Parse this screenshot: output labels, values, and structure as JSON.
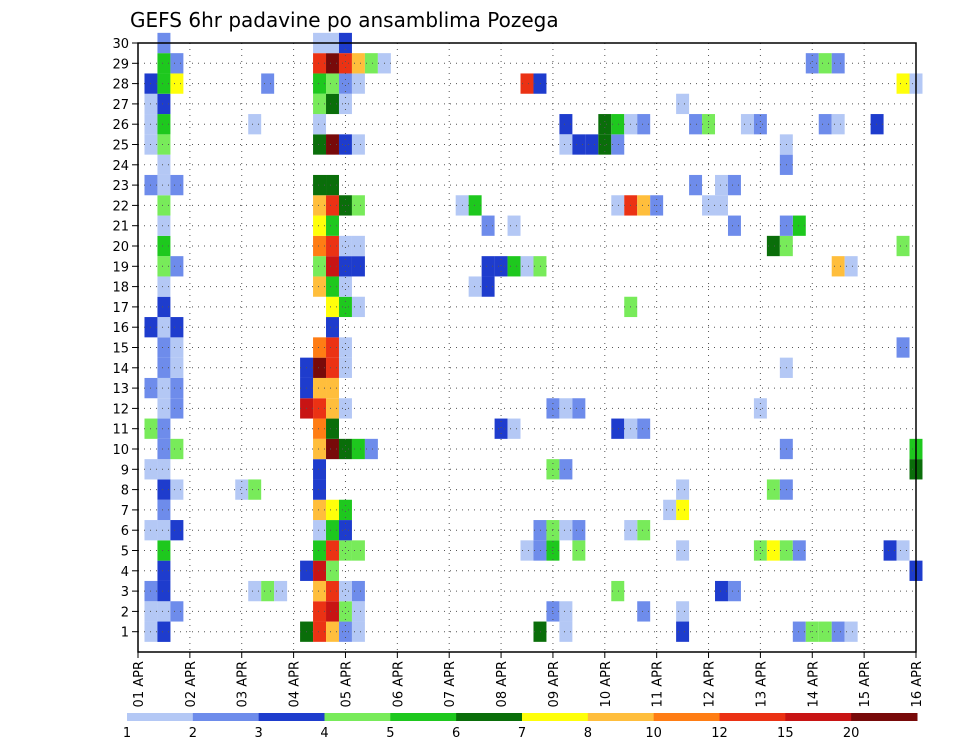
{
  "chart_data": {
    "type": "heatmap",
    "title": "GEFS 6hr padavine po ansamblima Pozega",
    "xlabel": "",
    "ylabel": "",
    "x_ticks": [
      "01 APR",
      "02 APR",
      "03 APR",
      "04 APR",
      "05 APR",
      "06 APR",
      "07 APR",
      "08 APR",
      "09 APR",
      "10 APR",
      "11 APR",
      "12 APR",
      "13 APR",
      "14 APR",
      "15 APR",
      "16 APR"
    ],
    "y_ticks": [
      "1",
      "2",
      "3",
      "4",
      "5",
      "6",
      "7",
      "8",
      "9",
      "10",
      "11",
      "12",
      "13",
      "14",
      "15",
      "16",
      "17",
      "18",
      "19",
      "20",
      "21",
      "22",
      "23",
      "24",
      "25",
      "26",
      "27",
      "28",
      "29",
      "30"
    ],
    "xlim": [
      0,
      15
    ],
    "ylim": [
      0,
      30
    ],
    "grid": true,
    "x_step": 0.25,
    "y_step": 1,
    "legend": {
      "placement": "bottom",
      "labels": [
        "1",
        "2",
        "3",
        "4",
        "5",
        "6",
        "7",
        "8",
        "10",
        "12",
        "15",
        "20"
      ],
      "colors": [
        "#b4c8f5",
        "#6e8ceb",
        "#1e3ccd",
        "#78eb5a",
        "#1ec81e",
        "#0a6e0a",
        "#ffff0a",
        "#ffbe3c",
        "#ff7d14",
        "#eb3214",
        "#c81414",
        "#780a0a"
      ]
    },
    "cells": [
      [
        0.25,
        1,
        1
      ],
      [
        0.5,
        1,
        2
      ],
      [
        0.5,
        1,
        3
      ],
      [
        0.25,
        2,
        1
      ],
      [
        0.5,
        2,
        1
      ],
      [
        0.75,
        2,
        2
      ],
      [
        0.25,
        3,
        2
      ],
      [
        0.5,
        3,
        3
      ],
      [
        0.5,
        4,
        3
      ],
      [
        0.5,
        5,
        5
      ],
      [
        0.25,
        6,
        1
      ],
      [
        0.5,
        6,
        1
      ],
      [
        0.75,
        6,
        3
      ],
      [
        0.5,
        7,
        2
      ],
      [
        0.5,
        8,
        3
      ],
      [
        0.75,
        8,
        1
      ],
      [
        0.25,
        9,
        1
      ],
      [
        0.5,
        9,
        1
      ],
      [
        0.5,
        10,
        2
      ],
      [
        0.75,
        10,
        4
      ],
      [
        0.25,
        11,
        4
      ],
      [
        0.5,
        11,
        2
      ],
      [
        0.5,
        12,
        1
      ],
      [
        0.75,
        12,
        2
      ],
      [
        0.25,
        13,
        2
      ],
      [
        0.5,
        13,
        1
      ],
      [
        0.75,
        13,
        2
      ],
      [
        0.5,
        14,
        2
      ],
      [
        0.75,
        14,
        1
      ],
      [
        0.5,
        15,
        2
      ],
      [
        0.75,
        15,
        1
      ],
      [
        0.25,
        16,
        3
      ],
      [
        0.5,
        16,
        1
      ],
      [
        0.75,
        16,
        3
      ],
      [
        0.5,
        17,
        3
      ],
      [
        0.5,
        18,
        1
      ],
      [
        0.5,
        19,
        4
      ],
      [
        0.75,
        19,
        2
      ],
      [
        0.5,
        20,
        5
      ],
      [
        0.5,
        21,
        1
      ],
      [
        0.5,
        22,
        4
      ],
      [
        0.25,
        23,
        2
      ],
      [
        0.5,
        23,
        1
      ],
      [
        0.75,
        23,
        2
      ],
      [
        0.5,
        24,
        1
      ],
      [
        0.25,
        25,
        1
      ],
      [
        0.5,
        25,
        4
      ],
      [
        0.25,
        26,
        1
      ],
      [
        0.5,
        26,
        5
      ],
      [
        0.25,
        27,
        1
      ],
      [
        0.5,
        27,
        3
      ],
      [
        0.25,
        28,
        3
      ],
      [
        0.5,
        28,
        5
      ],
      [
        0.75,
        28,
        7
      ],
      [
        0.5,
        29,
        5
      ],
      [
        0.75,
        29,
        2
      ],
      [
        0.5,
        30,
        2
      ],
      [
        3.25,
        1,
        6
      ],
      [
        3.5,
        1,
        10
      ],
      [
        3.75,
        1,
        8
      ],
      [
        4,
        1,
        2
      ],
      [
        4.25,
        1,
        1
      ],
      [
        3.5,
        2,
        10
      ],
      [
        3.75,
        2,
        11
      ],
      [
        4,
        2,
        4
      ],
      [
        4.25,
        2,
        1
      ],
      [
        3.5,
        3,
        8
      ],
      [
        3.75,
        3,
        10
      ],
      [
        4,
        3,
        1
      ],
      [
        4.25,
        3,
        2
      ],
      [
        3.25,
        4,
        3
      ],
      [
        3.5,
        4,
        11
      ],
      [
        3.75,
        4,
        4
      ],
      [
        3.5,
        5,
        5
      ],
      [
        3.75,
        5,
        10
      ],
      [
        4,
        5,
        4
      ],
      [
        4.25,
        5,
        4
      ],
      [
        3.5,
        6,
        1
      ],
      [
        3.75,
        6,
        5
      ],
      [
        4,
        6,
        3
      ],
      [
        3.5,
        7,
        8
      ],
      [
        3.75,
        7,
        7
      ],
      [
        4,
        7,
        5
      ],
      [
        3.5,
        8,
        3
      ],
      [
        3.5,
        9,
        3
      ],
      [
        3.5,
        10,
        8
      ],
      [
        3.75,
        10,
        12
      ],
      [
        4,
        10,
        6
      ],
      [
        4.25,
        10,
        5
      ],
      [
        4.5,
        10,
        2
      ],
      [
        3.5,
        11,
        9
      ],
      [
        3.75,
        11,
        6
      ],
      [
        3.25,
        12,
        11
      ],
      [
        3.5,
        12,
        10
      ],
      [
        3.75,
        12,
        8
      ],
      [
        4,
        12,
        1
      ],
      [
        3.25,
        13,
        3
      ],
      [
        3.5,
        13,
        8
      ],
      [
        3.75,
        13,
        8
      ],
      [
        3.25,
        14,
        3
      ],
      [
        3.5,
        14,
        12
      ],
      [
        3.75,
        14,
        10
      ],
      [
        4,
        14,
        1
      ],
      [
        3.5,
        15,
        9
      ],
      [
        3.75,
        15,
        10
      ],
      [
        4,
        15,
        1
      ],
      [
        3.75,
        16,
        3
      ],
      [
        3.75,
        17,
        7
      ],
      [
        4,
        17,
        5
      ],
      [
        4.25,
        17,
        1
      ],
      [
        3.5,
        18,
        8
      ],
      [
        3.75,
        18,
        5
      ],
      [
        4,
        18,
        1
      ],
      [
        3.5,
        19,
        4
      ],
      [
        3.75,
        19,
        11
      ],
      [
        4,
        19,
        3
      ],
      [
        4.25,
        19,
        3
      ],
      [
        3.5,
        20,
        9
      ],
      [
        3.75,
        20,
        10
      ],
      [
        4,
        20,
        1
      ],
      [
        4.25,
        20,
        1
      ],
      [
        3.5,
        21,
        7
      ],
      [
        3.75,
        21,
        5
      ],
      [
        3.5,
        22,
        8
      ],
      [
        3.75,
        22,
        10
      ],
      [
        4,
        22,
        6
      ],
      [
        4.25,
        22,
        4
      ],
      [
        3.5,
        23,
        6
      ],
      [
        3.75,
        23,
        6
      ],
      [
        3.5,
        25,
        6
      ],
      [
        3.75,
        25,
        12
      ],
      [
        4,
        25,
        3
      ],
      [
        4.25,
        25,
        1
      ],
      [
        3.5,
        26,
        1
      ],
      [
        3.5,
        27,
        4
      ],
      [
        3.75,
        27,
        6
      ],
      [
        4,
        27,
        1
      ],
      [
        3.5,
        28,
        5
      ],
      [
        3.75,
        28,
        4
      ],
      [
        4,
        28,
        2
      ],
      [
        4.25,
        28,
        1
      ],
      [
        3.5,
        29,
        10
      ],
      [
        3.75,
        29,
        12
      ],
      [
        4,
        29,
        10
      ],
      [
        4.25,
        29,
        8
      ],
      [
        4.5,
        29,
        4
      ],
      [
        4.75,
        29,
        1
      ],
      [
        3.5,
        30,
        1
      ],
      [
        3.75,
        30,
        1
      ],
      [
        4,
        30,
        3
      ],
      [
        2.25,
        3,
        1
      ],
      [
        2.5,
        3,
        4
      ],
      [
        2.75,
        3,
        1
      ],
      [
        2,
        8,
        1
      ],
      [
        2.25,
        8,
        4
      ],
      [
        2.25,
        26,
        1
      ],
      [
        2.5,
        28,
        2
      ],
      [
        7.75,
        1,
        6
      ],
      [
        8.25,
        1,
        1
      ],
      [
        8,
        2,
        2
      ],
      [
        8.25,
        2,
        1
      ],
      [
        7.5,
        5,
        1
      ],
      [
        7.75,
        5,
        2
      ],
      [
        8,
        5,
        5
      ],
      [
        8.5,
        5,
        4
      ],
      [
        7.75,
        6,
        2
      ],
      [
        8,
        6,
        4
      ],
      [
        8.25,
        6,
        1
      ],
      [
        8.5,
        6,
        2
      ],
      [
        8,
        9,
        4
      ],
      [
        8.25,
        9,
        2
      ],
      [
        7,
        11,
        3
      ],
      [
        7.25,
        11,
        1
      ],
      [
        8,
        12,
        2
      ],
      [
        8.25,
        12,
        1
      ],
      [
        8.5,
        12,
        2
      ],
      [
        6.75,
        18,
        3
      ],
      [
        6.5,
        18,
        1
      ],
      [
        6.75,
        19,
        3
      ],
      [
        7,
        19,
        3
      ],
      [
        7.25,
        19,
        5
      ],
      [
        7.5,
        19,
        1
      ],
      [
        7.75,
        19,
        4
      ],
      [
        7.5,
        28,
        10
      ],
      [
        7.75,
        28,
        3
      ],
      [
        8.25,
        26,
        3
      ],
      [
        8.25,
        25,
        1
      ],
      [
        8.5,
        25,
        3
      ],
      [
        8.75,
        25,
        3
      ],
      [
        9,
        25,
        6
      ],
      [
        9.25,
        25,
        2
      ],
      [
        9,
        26,
        6
      ],
      [
        9.25,
        26,
        5
      ],
      [
        9.5,
        26,
        1
      ],
      [
        9.75,
        26,
        2
      ],
      [
        9.25,
        22,
        1
      ],
      [
        9.5,
        22,
        10
      ],
      [
        9.75,
        22,
        8
      ],
      [
        10,
        22,
        2
      ],
      [
        9.5,
        17,
        4
      ],
      [
        9.25,
        11,
        3
      ],
      [
        9.5,
        11,
        1
      ],
      [
        9.75,
        11,
        2
      ],
      [
        9.25,
        3,
        4
      ],
      [
        9.75,
        2,
        2
      ],
      [
        9.75,
        6,
        4
      ],
      [
        9.5,
        6,
        1
      ],
      [
        10.5,
        7,
        7
      ],
      [
        10.25,
        7,
        1
      ],
      [
        10.5,
        8,
        1
      ],
      [
        10.5,
        5,
        1
      ],
      [
        10.5,
        2,
        1
      ],
      [
        10.5,
        1,
        3
      ],
      [
        11.25,
        3,
        3
      ],
      [
        11.5,
        3,
        2
      ],
      [
        12,
        5,
        4
      ],
      [
        12.25,
        5,
        7
      ],
      [
        12.5,
        5,
        4
      ],
      [
        12.75,
        5,
        2
      ],
      [
        12.75,
        1,
        2
      ],
      [
        13,
        1,
        4
      ],
      [
        13.25,
        1,
        4
      ],
      [
        13.5,
        1,
        2
      ],
      [
        13.75,
        1,
        1
      ],
      [
        12.25,
        8,
        4
      ],
      [
        12.5,
        8,
        2
      ],
      [
        12.5,
        10,
        2
      ],
      [
        12.25,
        20,
        6
      ],
      [
        12.5,
        20,
        4
      ],
      [
        12.75,
        21,
        5
      ],
      [
        12.5,
        21,
        2
      ],
      [
        13.5,
        19,
        8
      ],
      [
        13.75,
        19,
        1
      ],
      [
        13.25,
        26,
        2
      ],
      [
        13.5,
        26,
        1
      ],
      [
        14.25,
        26,
        3
      ],
      [
        14.75,
        28,
        7
      ],
      [
        15,
        28,
        1
      ],
      [
        14.75,
        20,
        4
      ],
      [
        14.75,
        15,
        2
      ],
      [
        15,
        10,
        5
      ],
      [
        15,
        9,
        6
      ],
      [
        15,
        4,
        3
      ],
      [
        14.5,
        5,
        3
      ],
      [
        14.75,
        5,
        1
      ],
      [
        10.75,
        26,
        2
      ],
      [
        11,
        26,
        4
      ],
      [
        11,
        22,
        1
      ],
      [
        11.25,
        22,
        1
      ],
      [
        11.5,
        21,
        2
      ],
      [
        12,
        12,
        1
      ],
      [
        12.5,
        14,
        1
      ],
      [
        12.5,
        24,
        2
      ],
      [
        11.75,
        26,
        1
      ],
      [
        12,
        26,
        2
      ],
      [
        12.5,
        25,
        1
      ],
      [
        10.75,
        23,
        2
      ],
      [
        11.25,
        23,
        1
      ],
      [
        11.5,
        23,
        2
      ],
      [
        10.5,
        27,
        1
      ],
      [
        13,
        29,
        2
      ],
      [
        13.25,
        29,
        4
      ],
      [
        13.5,
        29,
        2
      ],
      [
        7.25,
        21,
        1
      ],
      [
        6.25,
        22,
        1
      ],
      [
        6.5,
        22,
        5
      ],
      [
        6.75,
        21,
        2
      ]
    ]
  }
}
